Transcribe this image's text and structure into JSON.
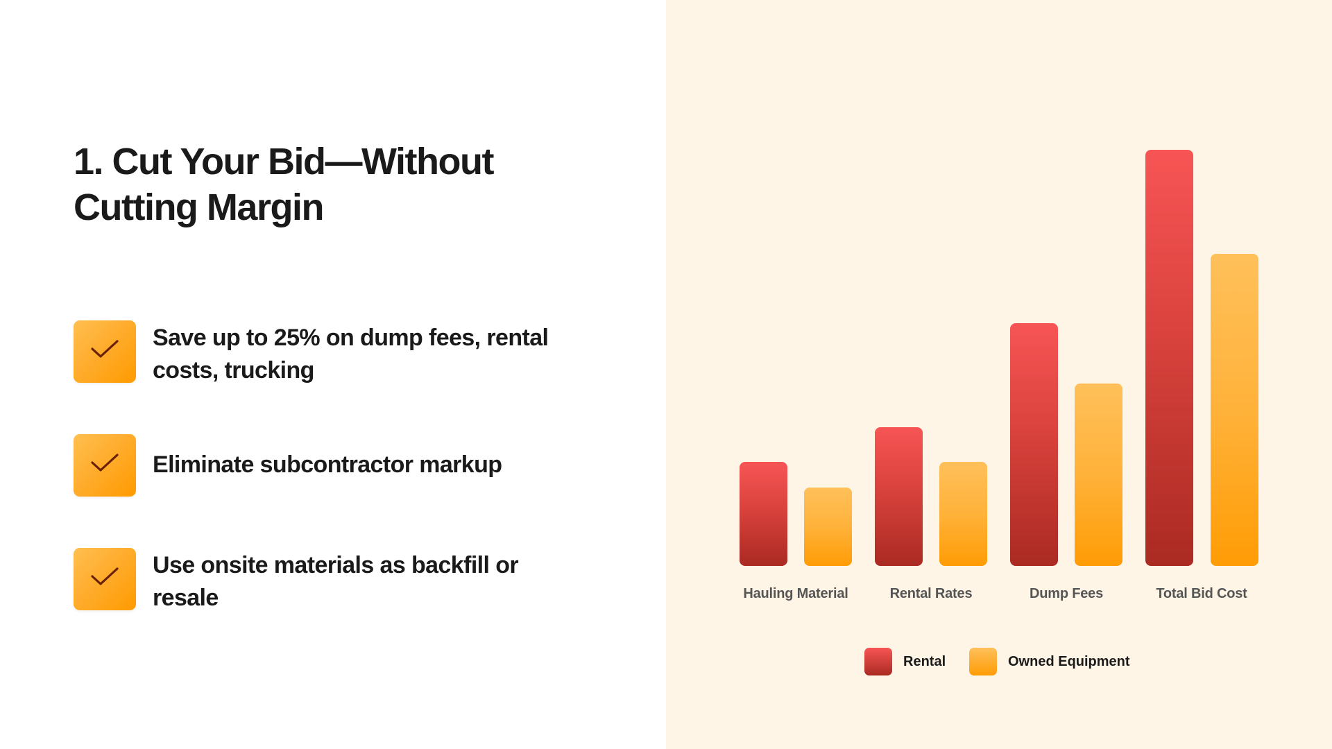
{
  "slide": {
    "title": "1. Cut Your Bid—Without Cutting Margin",
    "bullets": [
      {
        "icon": "check-icon",
        "text": "Save up to 25% on dump fees, rental costs, trucking"
      },
      {
        "icon": "check-icon",
        "text": "Eliminate subcontractor markup"
      },
      {
        "icon": "check-icon",
        "text": "Use onsite materials as backfill or resale"
      }
    ]
  },
  "colors": {
    "rental": "#e0443f",
    "owned": "#ffad2e",
    "panel_background": "#fff5e6",
    "checkmark": "#6b2008"
  },
  "chart_data": {
    "type": "bar",
    "title": "",
    "xlabel": "",
    "ylabel": "",
    "categories": [
      "Hauling Material",
      "Rental Rates",
      "Dump Fees",
      "Total Bid Cost"
    ],
    "series": [
      {
        "name": "Rental",
        "values": [
          3,
          4,
          7,
          12
        ]
      },
      {
        "name": "Owned Equipment",
        "values": [
          2.25,
          3,
          5.25,
          9
        ]
      }
    ],
    "ylim": [
      0,
      12
    ],
    "grid": false,
    "axes_visible": false,
    "legend_position": "bottom",
    "value_units": "relative (no axis shown)"
  },
  "legend": {
    "items": [
      {
        "label": "Rental"
      },
      {
        "label": "Owned Equipment"
      }
    ]
  }
}
